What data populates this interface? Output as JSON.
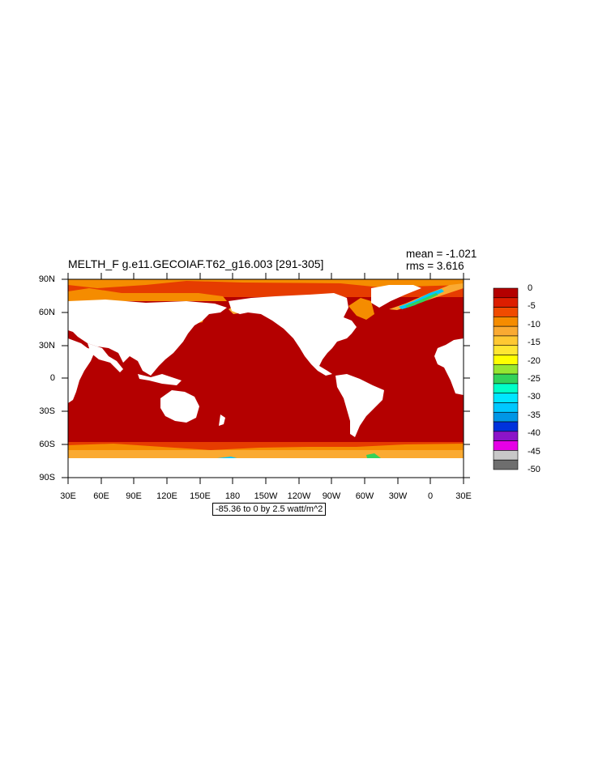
{
  "title": "MELTH_F g.e11.GECOIAF.T62_g16.003 [291-305]",
  "stats": {
    "mean": "mean = -1.021",
    "rms": "rms = 3.616"
  },
  "range_label": "-85.36 to 0 by 2.5 watt/m^2",
  "lat_labels": [
    "90N",
    "60N",
    "30N",
    "0",
    "30S",
    "60S",
    "90S"
  ],
  "lon_labels": [
    "30E",
    "60E",
    "90E",
    "120E",
    "150E",
    "180",
    "150W",
    "120W",
    "90W",
    "60W",
    "30W",
    "0",
    "30E"
  ],
  "colorbar": {
    "labels": [
      "0",
      "-5",
      "-10",
      "-15",
      "-20",
      "-25",
      "-30",
      "-35",
      "-40",
      "-45",
      "-50"
    ],
    "colors": [
      "#b40000",
      "#dc1e00",
      "#f04b00",
      "#f58c00",
      "#faaa32",
      "#ffc832",
      "#ffe632",
      "#ffff00",
      "#96e632",
      "#32d25a",
      "#00ffc8",
      "#00e6ff",
      "#00c8ff",
      "#0096e6",
      "#0032dc",
      "#8c14c8",
      "#e600e6",
      "#c8c8c8",
      "#6e6e6e"
    ]
  },
  "map_colors": {
    "ocean": "#b40000",
    "ice_edge": "#e63c00",
    "ice_mid": "#f58c00",
    "ice_light": "#faaa32",
    "land": "#ffffff"
  }
}
